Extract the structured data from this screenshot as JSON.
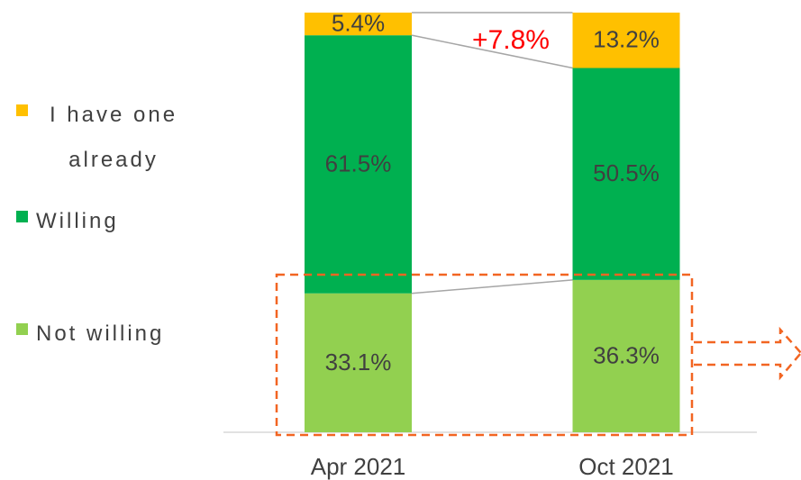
{
  "chart_data": {
    "type": "stacked_bar",
    "categories": [
      "Apr 2021",
      "Oct 2021"
    ],
    "series": [
      {
        "name": "Not willing",
        "color": "#92d050",
        "values": [
          33.1,
          36.3
        ],
        "value_labels": [
          "33.1%",
          "36.3%"
        ]
      },
      {
        "name": "Willing",
        "color": "#00b050",
        "values": [
          61.5,
          50.5
        ],
        "value_labels": [
          "61.5%",
          "50.5%"
        ]
      },
      {
        "name": "I have one already",
        "color": "#ffc000",
        "values": [
          5.4,
          13.2
        ],
        "value_labels": [
          "5.4%",
          "13.2%"
        ]
      }
    ],
    "annotation": "+7.8%",
    "legend": "left"
  }
}
